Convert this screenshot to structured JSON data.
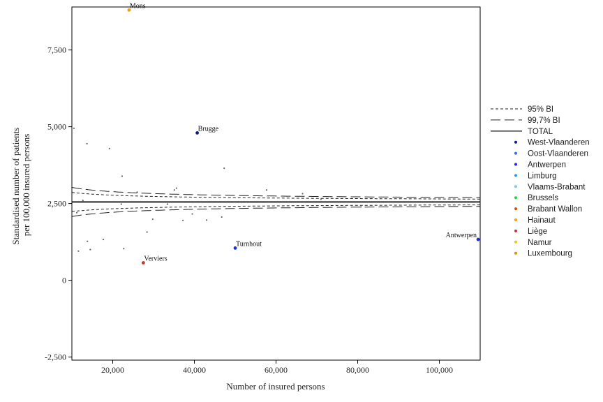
{
  "chart_data": {
    "type": "scatter",
    "title": "",
    "xlabel": "Number of insured persons",
    "ylabel_lines": [
      "Standardised number of patients",
      "per 100,000 insured persons"
    ],
    "xlim": [
      10000,
      110000
    ],
    "ylim": [
      -2600,
      8900
    ],
    "x_ticks": [
      20000,
      40000,
      60000,
      80000,
      100000
    ],
    "x_tick_labels": [
      "20,000",
      "40,000",
      "60,000",
      "80,000",
      "100,000"
    ],
    "y_ticks": [
      -2500,
      0,
      2500,
      5000,
      7500
    ],
    "y_tick_labels": [
      "-2,500",
      "0",
      "2,500",
      "5,000",
      "7,500"
    ],
    "total_rate": 2550,
    "ci95_z": 1.96,
    "ci997_z": 2.97,
    "grey_points": [
      [
        10500,
        4950
      ],
      [
        11200,
        2200
      ],
      [
        11600,
        950
      ],
      [
        12700,
        2600
      ],
      [
        13700,
        4450
      ],
      [
        14500,
        1000
      ],
      [
        13800,
        1270
      ],
      [
        17700,
        1330
      ],
      [
        19200,
        4290
      ],
      [
        22300,
        3390
      ],
      [
        22700,
        1030
      ],
      [
        22100,
        2480
      ],
      [
        26000,
        2870
      ],
      [
        28400,
        1570
      ],
      [
        29800,
        1990
      ],
      [
        33400,
        2480
      ],
      [
        35100,
        2940
      ],
      [
        35600,
        3000
      ],
      [
        37200,
        1950
      ],
      [
        39500,
        2160
      ],
      [
        43000,
        1960
      ],
      [
        46700,
        2060
      ],
      [
        47300,
        3650
      ],
      [
        57700,
        2940
      ],
      [
        66500,
        2820
      ],
      [
        71000,
        2640
      ],
      [
        80800,
        2390
      ]
    ],
    "highlighted_points": [
      {
        "label": "Mons",
        "region": "Hainaut",
        "x": 24000,
        "y": 8800,
        "color": "#f39c12"
      },
      {
        "label": "Brugge",
        "region": "West-Vlaanderen",
        "x": 40700,
        "y": 4800,
        "color": "#0a1e7a"
      },
      {
        "label": "Turnhout",
        "region": "Antwerpen",
        "x": 50000,
        "y": 1050,
        "color": "#1a2fd6"
      },
      {
        "label": "Verviers",
        "region": "Liège",
        "x": 27500,
        "y": 570,
        "color": "#c0392b"
      },
      {
        "label": "Antwerpen",
        "region": "Antwerpen",
        "x": 109500,
        "y": 1330,
        "color": "#1a2fd6"
      }
    ],
    "legend": {
      "placement": "right",
      "lines": [
        {
          "label": "95% BI",
          "style": "short-dash"
        },
        {
          "label": "99,7% BI",
          "style": "long-dash"
        },
        {
          "label": "TOTAL",
          "style": "solid"
        }
      ],
      "markers": [
        {
          "label": "West-Vlaanderen",
          "color": "#0a1e7a"
        },
        {
          "label": "Oost-Vlaanderen",
          "color": "#3a6fd8"
        },
        {
          "label": "Antwerpen",
          "color": "#1a2fd6"
        },
        {
          "label": "Limburg",
          "color": "#3498db"
        },
        {
          "label": "Vlaams-Brabant",
          "color": "#7ec8e3"
        },
        {
          "label": "Brussels",
          "color": "#2ecc40"
        },
        {
          "label": "Brabant Wallon",
          "color": "#d35400"
        },
        {
          "label": "Hainaut",
          "color": "#f39c12"
        },
        {
          "label": "Liège",
          "color": "#c0392b"
        },
        {
          "label": "Namur",
          "color": "#f1c40f"
        },
        {
          "label": "Luxembourg",
          "color": "#e08e0b"
        }
      ]
    }
  }
}
